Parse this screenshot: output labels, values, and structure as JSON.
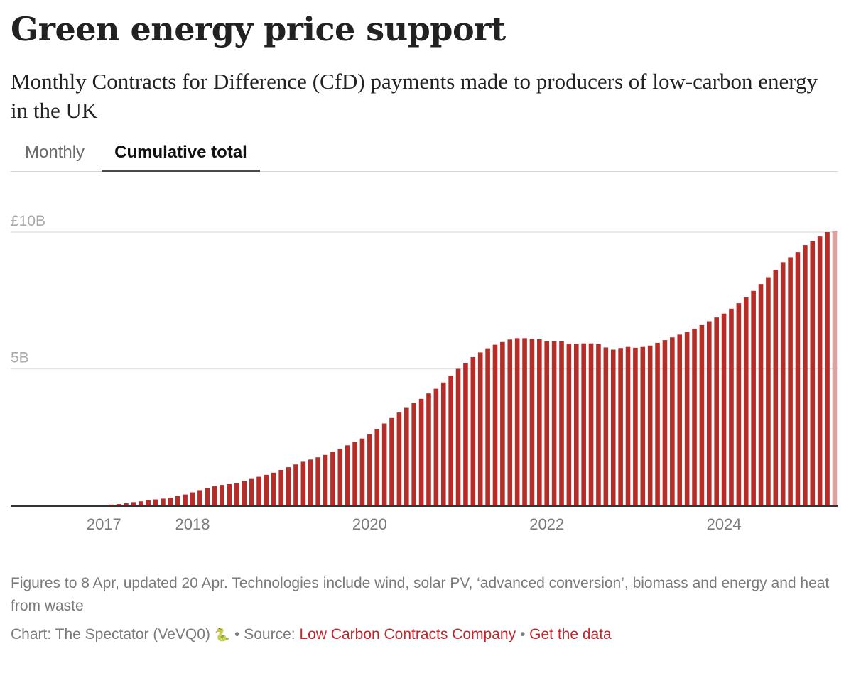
{
  "title": "Green energy price support",
  "subtitle": "Monthly Contracts for Difference (CfD) payments made to producers of low-carbon energy in the UK",
  "tabs": [
    {
      "label": "Monthly",
      "active": false
    },
    {
      "label": "Cumulative total",
      "active": true
    }
  ],
  "notes": "Figures to 8 Apr, updated 20 Apr. Technologies include wind, solar PV, ‘advanced conversion’, biomass and energy and heat from waste",
  "credit": {
    "prefix": "Chart: The Spectator (VeVQ0)",
    "icon": "snake-icon",
    "icon_glyph": "🐍",
    "separator": "•",
    "source_label": "Source:",
    "source_link": "Low Carbon Contracts Company",
    "data_link": "Get the data"
  },
  "colors": {
    "bar": "#b52d28",
    "bar_partial": "#dfa19e",
    "grid": "#e3e3e3",
    "axis": "#333333",
    "tick_label": "#7a7a7a",
    "y_label": "#a9a9a9"
  },
  "chart_data": {
    "type": "bar",
    "title": "Cumulative total",
    "xlabel": "",
    "ylabel": "",
    "units": "£ billion",
    "x_domain": [
      "2016-01",
      "2025-04"
    ],
    "ylim": [
      0,
      10
    ],
    "y_ticks": [
      {
        "value": 5,
        "label": "5B"
      },
      {
        "value": 10,
        "label": "£10B"
      }
    ],
    "x_ticks": [
      {
        "date": "2017-01",
        "label": "2017"
      },
      {
        "date": "2018-01",
        "label": "2018"
      },
      {
        "date": "2020-01",
        "label": "2020"
      },
      {
        "date": "2022-01",
        "label": "2022"
      },
      {
        "date": "2024-01",
        "label": "2024"
      }
    ],
    "grid": true,
    "partial_last": true,
    "start_month": "2017-02",
    "categories": [
      "2017-02",
      "2017-03",
      "2017-04",
      "2017-05",
      "2017-06",
      "2017-07",
      "2017-08",
      "2017-09",
      "2017-10",
      "2017-11",
      "2017-12",
      "2018-01",
      "2018-02",
      "2018-03",
      "2018-04",
      "2018-05",
      "2018-06",
      "2018-07",
      "2018-08",
      "2018-09",
      "2018-10",
      "2018-11",
      "2018-12",
      "2019-01",
      "2019-02",
      "2019-03",
      "2019-04",
      "2019-05",
      "2019-06",
      "2019-07",
      "2019-08",
      "2019-09",
      "2019-10",
      "2019-11",
      "2019-12",
      "2020-01",
      "2020-02",
      "2020-03",
      "2020-04",
      "2020-05",
      "2020-06",
      "2020-07",
      "2020-08",
      "2020-09",
      "2020-10",
      "2020-11",
      "2020-12",
      "2021-01",
      "2021-02",
      "2021-03",
      "2021-04",
      "2021-05",
      "2021-06",
      "2021-07",
      "2021-08",
      "2021-09",
      "2021-10",
      "2021-11",
      "2021-12",
      "2022-01",
      "2022-02",
      "2022-03",
      "2022-04",
      "2022-05",
      "2022-06",
      "2022-07",
      "2022-08",
      "2022-09",
      "2022-10",
      "2022-11",
      "2022-12",
      "2023-01",
      "2023-02",
      "2023-03",
      "2023-04",
      "2023-05",
      "2023-06",
      "2023-07",
      "2023-08",
      "2023-09",
      "2023-10",
      "2023-11",
      "2023-12",
      "2024-01",
      "2024-02",
      "2024-03",
      "2024-04",
      "2024-05",
      "2024-06",
      "2024-07",
      "2024-08",
      "2024-09",
      "2024-10",
      "2024-11",
      "2024-12",
      "2025-01",
      "2025-02",
      "2025-03",
      "2025-04"
    ],
    "values": [
      0.03,
      0.05,
      0.08,
      0.12,
      0.15,
      0.19,
      0.22,
      0.25,
      0.28,
      0.34,
      0.4,
      0.48,
      0.56,
      0.63,
      0.7,
      0.75,
      0.78,
      0.83,
      0.9,
      0.97,
      1.05,
      1.12,
      1.2,
      1.3,
      1.4,
      1.5,
      1.6,
      1.68,
      1.76,
      1.85,
      1.96,
      2.08,
      2.2,
      2.32,
      2.45,
      2.6,
      2.8,
      3.0,
      3.2,
      3.4,
      3.57,
      3.75,
      3.9,
      4.1,
      4.27,
      4.5,
      4.75,
      5.0,
      5.22,
      5.43,
      5.6,
      5.75,
      5.88,
      5.98,
      6.07,
      6.12,
      6.12,
      6.1,
      6.08,
      6.02,
      6.02,
      6.02,
      5.92,
      5.9,
      5.93,
      5.93,
      5.9,
      5.78,
      5.7,
      5.76,
      5.8,
      5.77,
      5.8,
      5.85,
      5.95,
      6.05,
      6.15,
      6.25,
      6.35,
      6.47,
      6.6,
      6.74,
      6.88,
      7.02,
      7.2,
      7.4,
      7.62,
      7.85,
      8.1,
      8.35,
      8.62,
      8.9,
      9.08,
      9.27,
      9.53,
      9.68,
      9.84,
      10.0,
      10.05
    ]
  }
}
